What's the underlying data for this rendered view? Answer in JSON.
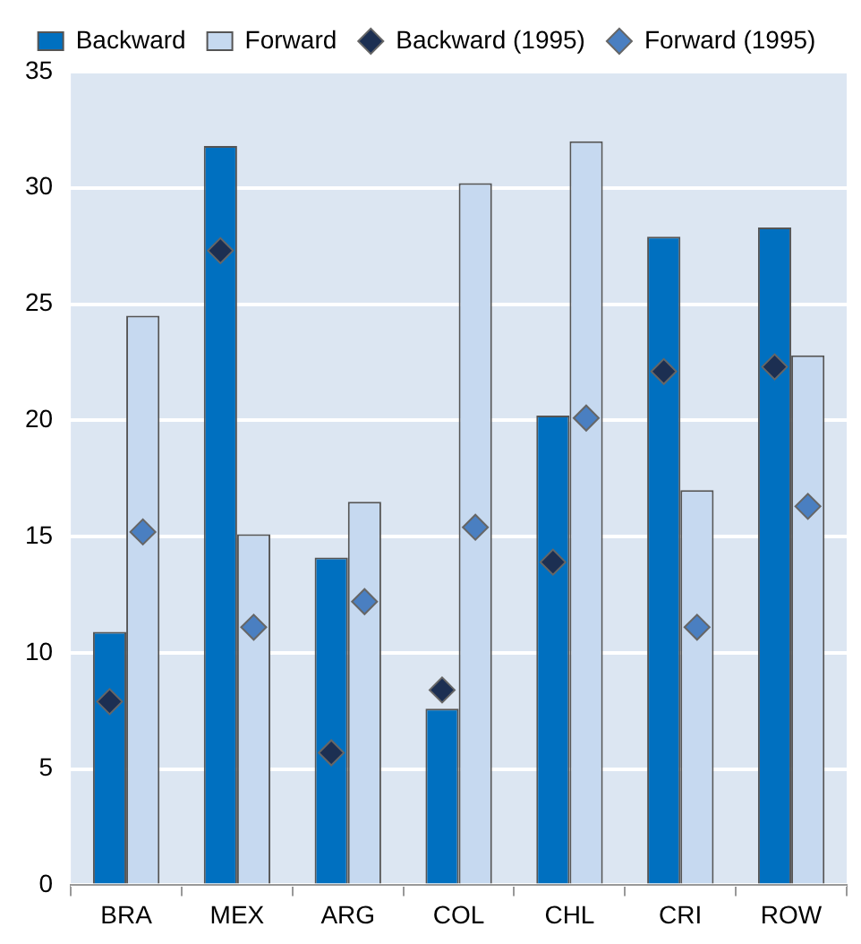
{
  "chart_data": {
    "type": "bar",
    "categories": [
      "BRA",
      "MEX",
      "ARG",
      "COL",
      "CHL",
      "CRI",
      "ROW"
    ],
    "series": [
      {
        "name": "Backward",
        "color": "#0070c0",
        "values": [
          10.9,
          31.8,
          14.1,
          7.6,
          20.2,
          27.9,
          28.3
        ]
      },
      {
        "name": "Forward",
        "color": "#c6d9f0",
        "values": [
          24.5,
          15.1,
          16.5,
          30.2,
          32.0,
          17.0,
          22.8
        ]
      },
      {
        "name": "Backward (1995)",
        "type": "scatter",
        "color": "#1c2f52",
        "x": [
          "BRA",
          "MEX",
          "ARG",
          "COL",
          "CHL",
          "CRI",
          "ROW"
        ],
        "values": [
          7.9,
          27.3,
          5.7,
          8.4,
          13.9,
          22.1,
          22.3
        ]
      },
      {
        "name": "Forward (1995)",
        "type": "scatter",
        "color": "#4a7fc1",
        "x": [
          "BRA",
          "MEX",
          "ARG",
          "COL",
          "CHL",
          "CRI",
          "ROW"
        ],
        "values": [
          15.2,
          11.1,
          12.2,
          15.4,
          20.1,
          11.1,
          16.3
        ]
      }
    ],
    "ylim": [
      0,
      35
    ],
    "yticks": [
      0,
      5,
      10,
      15,
      20,
      25,
      30,
      35
    ],
    "grid": "y",
    "legend": "top",
    "marker": "diamond"
  }
}
